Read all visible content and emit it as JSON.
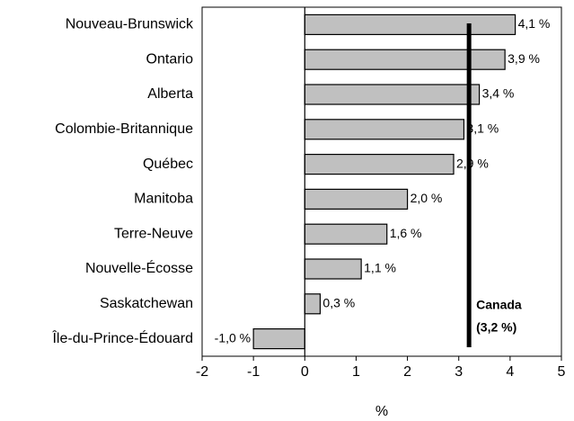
{
  "chart_data": {
    "type": "bar",
    "orientation": "horizontal",
    "categories": [
      "Nouveau-Brunswick",
      "Ontario",
      "Alberta",
      "Colombie-Britannique",
      "Québec",
      "Manitoba",
      "Terre-Neuve",
      "Nouvelle-Écosse",
      "Saskatchewan",
      "Île-du-Prince-Édouard"
    ],
    "values": [
      4.1,
      3.9,
      3.4,
      3.1,
      2.9,
      2.0,
      1.6,
      1.1,
      0.3,
      -1.0
    ],
    "value_labels": [
      "4,1 %",
      "3,9 %",
      "3,4 %",
      "3,1 %",
      "2,9 %",
      "2,0 %",
      "1,6 %",
      "1,1 %",
      "0,3 %",
      "-1,0 %"
    ],
    "color": "#c0c0c0",
    "xlim": [
      -2,
      5
    ],
    "xticks": [
      -2,
      -1,
      0,
      1,
      2,
      3,
      4,
      5
    ],
    "x_label": "%",
    "grid": false,
    "reference_line": {
      "value": 3.2,
      "label_lines": [
        "Canada",
        "(3,2 %)"
      ]
    }
  }
}
